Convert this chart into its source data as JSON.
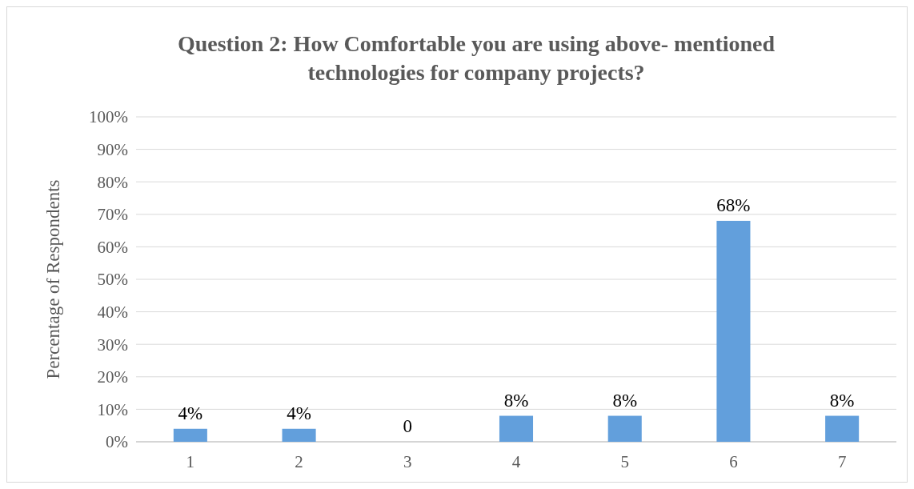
{
  "chart_data": {
    "type": "bar",
    "title": "Question 2: How Comfortable you are using above- mentioned technologies for company projects?",
    "ylabel": "Percentage of Respondents",
    "categories": [
      "1",
      "2",
      "3",
      "4",
      "5",
      "6",
      "7"
    ],
    "values": [
      4,
      4,
      0,
      8,
      8,
      68,
      8
    ],
    "value_labels": [
      "4%",
      "4%",
      "0",
      "8%",
      "8%",
      "68%",
      "8%"
    ],
    "color": "#629fdc",
    "ylim": [
      0,
      100
    ],
    "yticks": [
      {
        "value": 0,
        "label": "0%"
      },
      {
        "value": 10,
        "label": "10%"
      },
      {
        "value": 20,
        "label": "20%"
      },
      {
        "value": 30,
        "label": "30%"
      },
      {
        "value": 40,
        "label": "40%"
      },
      {
        "value": 50,
        "label": "50%"
      },
      {
        "value": 60,
        "label": "60%"
      },
      {
        "value": 70,
        "label": "70%"
      },
      {
        "value": 80,
        "label": "80%"
      },
      {
        "value": 90,
        "label": "90%"
      },
      {
        "value": 100,
        "label": "100%"
      }
    ],
    "grid": "y"
  }
}
